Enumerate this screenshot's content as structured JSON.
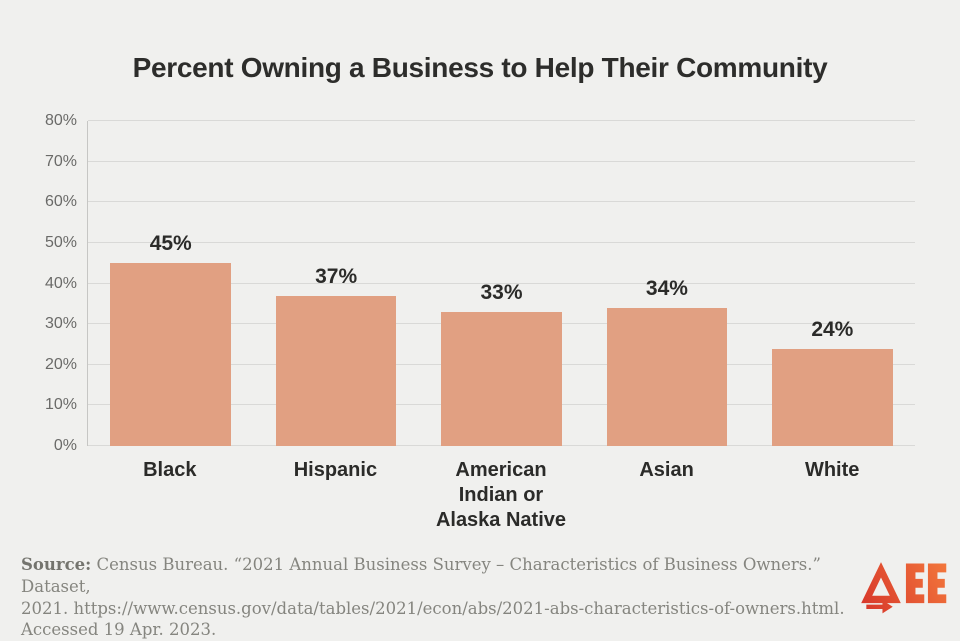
{
  "chart_data": {
    "type": "bar",
    "title": "Percent Owning a Business to Help Their Community",
    "categories": [
      "Black",
      "Hispanic",
      "American Indian or Alaska Native",
      "Asian",
      "White"
    ],
    "values": [
      45,
      37,
      33,
      34,
      24
    ],
    "value_suffix": "%",
    "xlabel": "",
    "ylabel": "",
    "ylim": [
      0,
      80
    ],
    "yticks": [
      0,
      10,
      20,
      30,
      40,
      50,
      60,
      70,
      80
    ],
    "ytick_suffix": "%",
    "grid": true,
    "legend": false,
    "bar_color": "#E1A082",
    "background_color": "#F0F0EE",
    "gridline_color": "#d9d9d7",
    "label_color": "#2b2b29",
    "tick_color": "#6a6a68"
  },
  "source": {
    "label": "Source:",
    "rest": " Census Bureau. “2021 Annual Business Survey – Characteristics of Business Owners.” Dataset,\n2021. https://www.census.gov/data/tables/2021/econ/abs/2021-abs-characteristics-of-owners.html.\nAccessed 19 Apr. 2023."
  },
  "logo": {
    "name": "AEE",
    "color_start": "#D6342A",
    "color_end": "#F3783C"
  }
}
